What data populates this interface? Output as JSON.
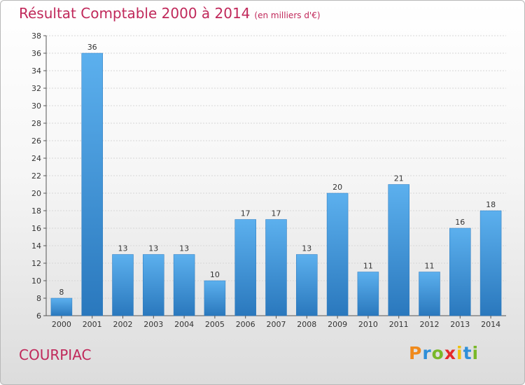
{
  "title": "Résultat Comptable 2000 à 2014",
  "subtitle": "(en milliers d'€)",
  "commune": "COURPIAC",
  "logo": {
    "letters": [
      "P",
      "r",
      "o",
      "x",
      "i",
      "t",
      "i"
    ],
    "colors": [
      "#f08a1c",
      "#2f8fd8",
      "#79b829",
      "#e52a2a",
      "#f0c20c",
      "#2f8fd8",
      "#79b829"
    ]
  },
  "chart_data": {
    "type": "bar",
    "title": "Résultat Comptable 2000 à 2014",
    "unit": "(en milliers d'€)",
    "categories": [
      "2000",
      "2001",
      "2002",
      "2003",
      "2004",
      "2005",
      "2006",
      "2007",
      "2008",
      "2009",
      "2010",
      "2011",
      "2012",
      "2013",
      "2014"
    ],
    "values": [
      8,
      36,
      13,
      13,
      13,
      10,
      17,
      17,
      13,
      20,
      11,
      21,
      11,
      16,
      18
    ],
    "ylim": [
      6,
      38
    ],
    "yticks": [
      "6",
      "8",
      "10",
      "12",
      "14",
      "16",
      "18",
      "20",
      "22",
      "24",
      "26",
      "28",
      "30",
      "32",
      "34",
      "36",
      "38"
    ],
    "grid": true,
    "bar_color": "#3b8fd6"
  }
}
